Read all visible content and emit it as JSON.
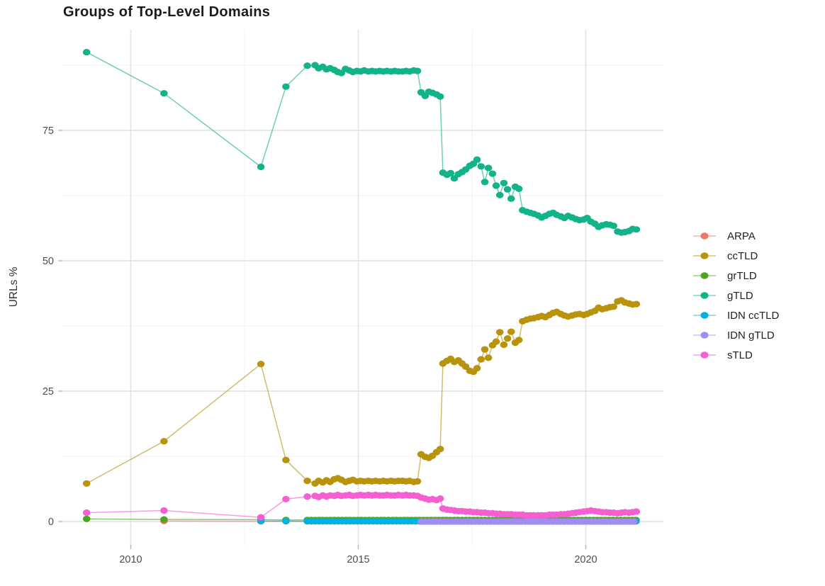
{
  "chart_data": {
    "type": "line",
    "title": "Groups of Top-Level Domains",
    "xlabel": "",
    "ylabel": "URLs %",
    "x_ticks": [
      2010,
      2015,
      2020
    ],
    "x_minor": [
      2012.5,
      2017.5
    ],
    "y_ticks": [
      0,
      25,
      50,
      75
    ],
    "y_minor": [
      12.5,
      37.5,
      62.5,
      87.5
    ],
    "xlim": [
      2008.5,
      2021.72
    ],
    "ylim": [
      -4.5,
      94.3
    ],
    "grid": true,
    "legend_position": "right",
    "series": [
      {
        "name": "ARPA",
        "color": "#F0766C",
        "points": [
          [
            2010.73,
            0.1
          ],
          [
            2012.86,
            0.05
          ],
          [
            2013.41,
            0.05
          ]
        ],
        "flat": {
          "start": 2013.88,
          "end": 2021.11,
          "step": 0.085,
          "value": 0.05
        }
      },
      {
        "name": "ccTLD",
        "color": "#B8930B",
        "points": [
          [
            2009.03,
            7.3
          ],
          [
            2010.73,
            15.4
          ],
          [
            2012.86,
            30.2
          ],
          [
            2013.41,
            11.8
          ],
          [
            2013.88,
            7.8
          ],
          [
            2014.05,
            7.3
          ],
          [
            2014.13,
            7.8
          ],
          [
            2014.22,
            7.5
          ],
          [
            2014.3,
            7.9
          ],
          [
            2014.38,
            7.6
          ],
          [
            2014.47,
            8.1
          ],
          [
            2014.55,
            8.3
          ],
          [
            2014.63,
            8.0
          ],
          [
            2014.72,
            7.6
          ],
          [
            2014.8,
            7.8
          ],
          [
            2014.88,
            8.0
          ],
          [
            2014.97,
            7.7
          ],
          [
            2015.05,
            7.8
          ],
          [
            2015.13,
            7.7
          ],
          [
            2015.22,
            7.8
          ],
          [
            2015.3,
            7.7
          ],
          [
            2015.38,
            7.8
          ],
          [
            2015.47,
            7.7
          ],
          [
            2015.55,
            7.8
          ],
          [
            2015.63,
            7.7
          ],
          [
            2015.72,
            7.8
          ],
          [
            2015.8,
            7.7
          ],
          [
            2015.88,
            7.8
          ],
          [
            2015.97,
            7.8
          ],
          [
            2016.05,
            7.7
          ],
          [
            2016.13,
            7.8
          ],
          [
            2016.22,
            7.6
          ],
          [
            2016.3,
            7.7
          ],
          [
            2016.38,
            12.9
          ],
          [
            2016.47,
            12.4
          ],
          [
            2016.55,
            12.2
          ],
          [
            2016.63,
            12.6
          ],
          [
            2016.72,
            13.3
          ],
          [
            2016.8,
            13.9
          ],
          [
            2016.86,
            30.3
          ],
          [
            2016.95,
            30.8
          ],
          [
            2017.03,
            31.2
          ],
          [
            2017.11,
            30.6
          ],
          [
            2017.2,
            30.9
          ],
          [
            2017.28,
            30.3
          ],
          [
            2017.36,
            29.7
          ],
          [
            2017.45,
            28.9
          ],
          [
            2017.53,
            28.7
          ],
          [
            2017.61,
            29.4
          ],
          [
            2017.7,
            31.1
          ],
          [
            2017.78,
            33.0
          ],
          [
            2017.86,
            31.4
          ],
          [
            2017.95,
            33.8
          ],
          [
            2018.03,
            34.5
          ],
          [
            2018.11,
            36.3
          ],
          [
            2018.2,
            33.9
          ],
          [
            2018.28,
            35.1
          ],
          [
            2018.36,
            36.4
          ],
          [
            2018.45,
            34.3
          ],
          [
            2018.53,
            34.8
          ],
          [
            2018.61,
            38.4
          ],
          [
            2018.7,
            38.7
          ],
          [
            2018.78,
            38.9
          ],
          [
            2018.86,
            39.0
          ],
          [
            2018.95,
            39.2
          ],
          [
            2019.03,
            39.4
          ],
          [
            2019.11,
            39.2
          ],
          [
            2019.2,
            39.6
          ],
          [
            2019.28,
            40.0
          ],
          [
            2019.36,
            40.2
          ],
          [
            2019.45,
            39.8
          ],
          [
            2019.53,
            39.5
          ],
          [
            2019.61,
            39.3
          ],
          [
            2019.7,
            39.5
          ],
          [
            2019.78,
            39.7
          ],
          [
            2019.86,
            39.8
          ],
          [
            2019.95,
            39.6
          ],
          [
            2020.03,
            39.8
          ],
          [
            2020.11,
            40.1
          ],
          [
            2020.2,
            40.4
          ],
          [
            2020.28,
            41.0
          ],
          [
            2020.36,
            40.7
          ],
          [
            2020.45,
            40.9
          ],
          [
            2020.53,
            41.1
          ],
          [
            2020.61,
            41.2
          ],
          [
            2020.7,
            42.2
          ],
          [
            2020.78,
            42.4
          ],
          [
            2020.86,
            42.0
          ],
          [
            2020.95,
            41.8
          ],
          [
            2021.03,
            41.6
          ],
          [
            2021.11,
            41.7
          ]
        ]
      },
      {
        "name": "grTLD",
        "color": "#4CA61F",
        "points": [
          [
            2009.03,
            0.5
          ],
          [
            2010.73,
            0.4
          ],
          [
            2012.86,
            0.35
          ],
          [
            2013.41,
            0.3
          ]
        ],
        "flat": {
          "start": 2013.88,
          "end": 2021.11,
          "step": 0.085,
          "value": 0.3
        }
      },
      {
        "name": "gTLD",
        "color": "#12B389",
        "points": [
          [
            2009.03,
            90.0
          ],
          [
            2010.73,
            82.1
          ],
          [
            2012.86,
            68.0
          ],
          [
            2013.41,
            83.4
          ],
          [
            2013.88,
            87.4
          ],
          [
            2014.05,
            87.5
          ],
          [
            2014.13,
            86.9
          ],
          [
            2014.22,
            87.2
          ],
          [
            2014.3,
            86.7
          ],
          [
            2014.38,
            86.9
          ],
          [
            2014.47,
            86.6
          ],
          [
            2014.55,
            86.2
          ],
          [
            2014.63,
            86.0
          ],
          [
            2014.72,
            86.8
          ],
          [
            2014.8,
            86.5
          ],
          [
            2014.88,
            86.2
          ],
          [
            2014.97,
            86.4
          ],
          [
            2015.05,
            86.3
          ],
          [
            2015.13,
            86.5
          ],
          [
            2015.22,
            86.3
          ],
          [
            2015.3,
            86.4
          ],
          [
            2015.38,
            86.3
          ],
          [
            2015.47,
            86.4
          ],
          [
            2015.55,
            86.3
          ],
          [
            2015.63,
            86.4
          ],
          [
            2015.72,
            86.3
          ],
          [
            2015.8,
            86.4
          ],
          [
            2015.88,
            86.3
          ],
          [
            2015.97,
            86.3
          ],
          [
            2016.05,
            86.4
          ],
          [
            2016.13,
            86.3
          ],
          [
            2016.22,
            86.5
          ],
          [
            2016.3,
            86.4
          ],
          [
            2016.38,
            82.3
          ],
          [
            2016.47,
            81.6
          ],
          [
            2016.55,
            82.4
          ],
          [
            2016.63,
            82.2
          ],
          [
            2016.72,
            81.9
          ],
          [
            2016.8,
            81.5
          ],
          [
            2016.86,
            66.9
          ],
          [
            2016.95,
            66.5
          ],
          [
            2017.03,
            66.8
          ],
          [
            2017.11,
            65.8
          ],
          [
            2017.2,
            66.6
          ],
          [
            2017.28,
            67.0
          ],
          [
            2017.36,
            67.5
          ],
          [
            2017.45,
            68.2
          ],
          [
            2017.53,
            68.6
          ],
          [
            2017.61,
            69.4
          ],
          [
            2017.7,
            68.1
          ],
          [
            2017.78,
            65.1
          ],
          [
            2017.86,
            67.8
          ],
          [
            2017.95,
            66.7
          ],
          [
            2018.03,
            64.4
          ],
          [
            2018.11,
            62.6
          ],
          [
            2018.2,
            64.9
          ],
          [
            2018.28,
            63.7
          ],
          [
            2018.36,
            61.9
          ],
          [
            2018.45,
            64.2
          ],
          [
            2018.53,
            63.8
          ],
          [
            2018.61,
            59.7
          ],
          [
            2018.7,
            59.4
          ],
          [
            2018.78,
            59.2
          ],
          [
            2018.86,
            59.0
          ],
          [
            2018.95,
            58.7
          ],
          [
            2019.03,
            58.3
          ],
          [
            2019.11,
            58.6
          ],
          [
            2019.2,
            59.0
          ],
          [
            2019.28,
            59.2
          ],
          [
            2019.36,
            58.8
          ],
          [
            2019.45,
            58.5
          ],
          [
            2019.53,
            58.2
          ],
          [
            2019.61,
            58.6
          ],
          [
            2019.7,
            58.3
          ],
          [
            2019.78,
            58.0
          ],
          [
            2019.86,
            57.8
          ],
          [
            2019.95,
            57.9
          ],
          [
            2020.03,
            58.2
          ],
          [
            2020.11,
            57.5
          ],
          [
            2020.2,
            57.1
          ],
          [
            2020.28,
            56.5
          ],
          [
            2020.36,
            56.8
          ],
          [
            2020.45,
            57.0
          ],
          [
            2020.53,
            56.9
          ],
          [
            2020.61,
            56.7
          ],
          [
            2020.7,
            55.6
          ],
          [
            2020.78,
            55.4
          ],
          [
            2020.86,
            55.5
          ],
          [
            2020.95,
            55.7
          ],
          [
            2021.03,
            56.1
          ],
          [
            2021.11,
            56.0
          ]
        ]
      },
      {
        "name": "IDN ccTLD",
        "color": "#00B2E3",
        "points": [
          [
            2012.86,
            0.1
          ],
          [
            2013.41,
            0.08
          ]
        ],
        "flat": {
          "start": 2013.88,
          "end": 2021.11,
          "step": 0.085,
          "value": 0.05
        }
      },
      {
        "name": "IDN gTLD",
        "color": "#A28CF0",
        "points": [],
        "flat": {
          "start": 2016.38,
          "end": 2021.11,
          "step": 0.085,
          "value": 0.0
        }
      },
      {
        "name": "sTLD",
        "color": "#F55FD2",
        "points": [
          [
            2009.03,
            1.7
          ],
          [
            2010.73,
            2.1
          ],
          [
            2012.86,
            0.8
          ],
          [
            2013.41,
            4.3
          ],
          [
            2013.88,
            4.8
          ],
          [
            2014.05,
            4.9
          ],
          [
            2014.13,
            4.7
          ],
          [
            2014.22,
            5.0
          ],
          [
            2014.3,
            4.8
          ],
          [
            2014.38,
            5.0
          ],
          [
            2014.47,
            4.9
          ],
          [
            2014.55,
            5.1
          ],
          [
            2014.63,
            4.9
          ],
          [
            2014.72,
            5.0
          ],
          [
            2014.8,
            5.1
          ],
          [
            2014.88,
            4.9
          ],
          [
            2014.97,
            5.0
          ],
          [
            2015.05,
            5.1
          ],
          [
            2015.13,
            5.0
          ],
          [
            2015.22,
            5.1
          ],
          [
            2015.3,
            5.0
          ],
          [
            2015.38,
            5.1
          ],
          [
            2015.47,
            5.0
          ],
          [
            2015.55,
            5.0
          ],
          [
            2015.63,
            5.1
          ],
          [
            2015.72,
            5.0
          ],
          [
            2015.8,
            5.0
          ],
          [
            2015.88,
            5.1
          ],
          [
            2015.97,
            5.0
          ],
          [
            2016.05,
            5.1
          ],
          [
            2016.13,
            5.0
          ],
          [
            2016.22,
            5.0
          ],
          [
            2016.3,
            4.9
          ],
          [
            2016.38,
            4.6
          ],
          [
            2016.47,
            4.4
          ],
          [
            2016.55,
            4.2
          ],
          [
            2016.63,
            4.3
          ],
          [
            2016.72,
            4.1
          ],
          [
            2016.8,
            4.4
          ],
          [
            2016.86,
            2.5
          ],
          [
            2016.95,
            2.3
          ],
          [
            2017.03,
            2.2
          ],
          [
            2017.11,
            2.1
          ],
          [
            2017.2,
            2.0
          ],
          [
            2017.28,
            2.0
          ],
          [
            2017.36,
            1.9
          ],
          [
            2017.45,
            1.9
          ],
          [
            2017.53,
            1.8
          ],
          [
            2017.61,
            1.8
          ],
          [
            2017.7,
            1.7
          ],
          [
            2017.78,
            1.7
          ],
          [
            2017.86,
            1.6
          ],
          [
            2017.95,
            1.6
          ],
          [
            2018.03,
            1.5
          ],
          [
            2018.11,
            1.5
          ],
          [
            2018.2,
            1.4
          ],
          [
            2018.28,
            1.4
          ],
          [
            2018.36,
            1.4
          ],
          [
            2018.45,
            1.3
          ],
          [
            2018.53,
            1.3
          ],
          [
            2018.61,
            1.3
          ],
          [
            2018.7,
            1.2
          ],
          [
            2018.78,
            1.2
          ],
          [
            2018.86,
            1.2
          ],
          [
            2018.95,
            1.2
          ],
          [
            2019.03,
            1.2
          ],
          [
            2019.11,
            1.2
          ],
          [
            2019.2,
            1.3
          ],
          [
            2019.28,
            1.3
          ],
          [
            2019.36,
            1.3
          ],
          [
            2019.45,
            1.4
          ],
          [
            2019.53,
            1.4
          ],
          [
            2019.61,
            1.5
          ],
          [
            2019.7,
            1.6
          ],
          [
            2019.78,
            1.7
          ],
          [
            2019.86,
            1.8
          ],
          [
            2019.95,
            1.9
          ],
          [
            2020.03,
            2.0
          ],
          [
            2020.11,
            2.1
          ],
          [
            2020.2,
            2.0
          ],
          [
            2020.28,
            1.9
          ],
          [
            2020.36,
            1.8
          ],
          [
            2020.45,
            1.8
          ],
          [
            2020.53,
            1.7
          ],
          [
            2020.61,
            1.7
          ],
          [
            2020.7,
            1.6
          ],
          [
            2020.78,
            1.7
          ],
          [
            2020.86,
            1.8
          ],
          [
            2020.95,
            1.7
          ],
          [
            2021.03,
            1.8
          ],
          [
            2021.11,
            1.9
          ]
        ]
      }
    ],
    "style": {
      "grid_major_color": "#e4e4e4",
      "grid_minor_color": "#f1f1f1",
      "tick_color": "#b7b7b7",
      "axis_text_color": "#4d4d4d",
      "title_color": "#1b1b1b",
      "background": "#ffffff"
    }
  }
}
